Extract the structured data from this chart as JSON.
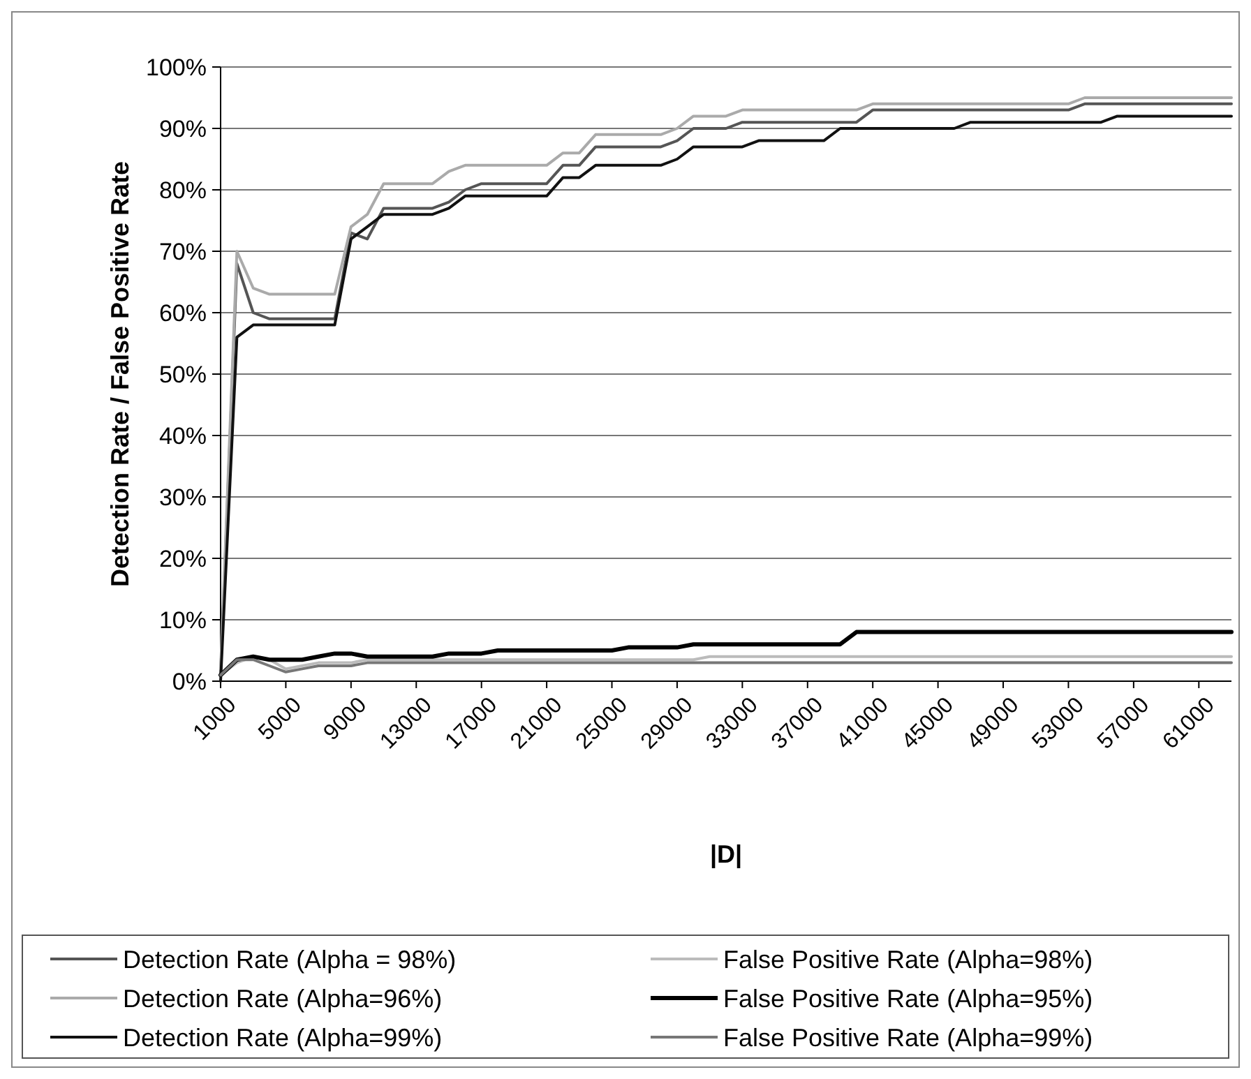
{
  "chart_data": {
    "type": "line",
    "xlabel": "|D|",
    "ylabel": "Detection Rate / False Positive Rate",
    "x": [
      1000,
      2000,
      3000,
      4000,
      5000,
      6000,
      7000,
      8000,
      9000,
      10000,
      11000,
      12000,
      13000,
      14000,
      15000,
      16000,
      17000,
      18000,
      19000,
      20000,
      21000,
      22000,
      23000,
      24000,
      25000,
      26000,
      27000,
      28000,
      29000,
      30000,
      31000,
      32000,
      33000,
      34000,
      35000,
      36000,
      37000,
      38000,
      39000,
      40000,
      41000,
      42000,
      43000,
      44000,
      45000,
      46000,
      47000,
      48000,
      49000,
      50000,
      51000,
      52000,
      53000,
      54000,
      55000,
      56000,
      57000,
      58000,
      59000,
      60000,
      61000,
      62000,
      63000
    ],
    "series": [
      {
        "name": "Detection Rate (Alpha = 98%)",
        "color": "#555555",
        "values": [
          1,
          68,
          60,
          59,
          59,
          59,
          59,
          59,
          73,
          72,
          77,
          77,
          77,
          77,
          78,
          80,
          81,
          81,
          81,
          81,
          81,
          84,
          84,
          87,
          87,
          87,
          87,
          87,
          88,
          90,
          90,
          90,
          91,
          91,
          91,
          91,
          91,
          91,
          91,
          91,
          93,
          93,
          93,
          93,
          93,
          93,
          93,
          93,
          93,
          93,
          93,
          93,
          93,
          94,
          94,
          94,
          94,
          94,
          94,
          94,
          94,
          94,
          94
        ]
      },
      {
        "name": "False Positive Rate (Alpha=98%)",
        "color": "#bbbbbb",
        "values": [
          1,
          3,
          4,
          3.5,
          2,
          2.5,
          3,
          3,
          3,
          3.5,
          3.5,
          3.5,
          3.5,
          3.5,
          3.5,
          3.5,
          3.5,
          3.5,
          3.5,
          3.5,
          3.5,
          3.5,
          3.5,
          3.5,
          3.5,
          3.5,
          3.5,
          3.5,
          3.5,
          3.5,
          4,
          4,
          4,
          4,
          4,
          4,
          4,
          4,
          4,
          4,
          4,
          4,
          4,
          4,
          4,
          4,
          4,
          4,
          4,
          4,
          4,
          4,
          4,
          4,
          4,
          4,
          4,
          4,
          4,
          4,
          4,
          4,
          4
        ]
      },
      {
        "name": "Detection Rate (Alpha=96%)",
        "color": "#aaaaaa",
        "values": [
          2,
          70,
          64,
          63,
          63,
          63,
          63,
          63,
          74,
          76,
          81,
          81,
          81,
          81,
          83,
          84,
          84,
          84,
          84,
          84,
          84,
          86,
          86,
          89,
          89,
          89,
          89,
          89,
          90,
          92,
          92,
          92,
          93,
          93,
          93,
          93,
          93,
          93,
          93,
          93,
          94,
          94,
          94,
          94,
          94,
          94,
          94,
          94,
          94,
          94,
          94,
          94,
          94,
          95,
          95,
          95,
          95,
          95,
          95,
          95,
          95,
          95,
          95
        ]
      },
      {
        "name": "False Positive Rate (Alpha=95%)",
        "color": "#000000",
        "values": [
          1,
          3.5,
          4,
          3.5,
          3.5,
          3.5,
          4,
          4.5,
          4.5,
          4,
          4,
          4,
          4,
          4,
          4.5,
          4.5,
          4.5,
          5,
          5,
          5,
          5,
          5,
          5,
          5,
          5,
          5.5,
          5.5,
          5.5,
          5.5,
          6,
          6,
          6,
          6,
          6,
          6,
          6,
          6,
          6,
          6,
          8,
          8,
          8,
          8,
          8,
          8,
          8,
          8,
          8,
          8,
          8,
          8,
          8,
          8,
          8,
          8,
          8,
          8,
          8,
          8,
          8,
          8,
          8,
          8
        ]
      },
      {
        "name": "Detection Rate (Alpha=99%)",
        "color": "#111111",
        "values": [
          0,
          56,
          58,
          58,
          58,
          58,
          58,
          58,
          72,
          74,
          76,
          76,
          76,
          76,
          77,
          79,
          79,
          79,
          79,
          79,
          79,
          82,
          82,
          84,
          84,
          84,
          84,
          84,
          85,
          87,
          87,
          87,
          87,
          88,
          88,
          88,
          88,
          88,
          90,
          90,
          90,
          90,
          90,
          90,
          90,
          90,
          91,
          91,
          91,
          91,
          91,
          91,
          91,
          91,
          91,
          92,
          92,
          92,
          92,
          92,
          92,
          92,
          92
        ]
      },
      {
        "name": "False Positive Rate (Alpha=99%)",
        "color": "#777777",
        "values": [
          1,
          3.5,
          3.5,
          2.5,
          1.5,
          2,
          2.5,
          2.5,
          2.5,
          3,
          3,
          3,
          3,
          3,
          3,
          3,
          3,
          3,
          3,
          3,
          3,
          3,
          3,
          3,
          3,
          3,
          3,
          3,
          3,
          3,
          3,
          3,
          3,
          3,
          3,
          3,
          3,
          3,
          3,
          3,
          3,
          3,
          3,
          3,
          3,
          3,
          3,
          3,
          3,
          3,
          3,
          3,
          3,
          3,
          3,
          3,
          3,
          3,
          3,
          3,
          3,
          3,
          3
        ]
      }
    ],
    "xlim": [
      1000,
      63000
    ],
    "xticks": [
      1000,
      5000,
      9000,
      13000,
      17000,
      21000,
      25000,
      29000,
      33000,
      37000,
      41000,
      45000,
      49000,
      53000,
      57000,
      61000
    ],
    "ylim": [
      0,
      100
    ],
    "yticks": [
      {
        "value": 0,
        "label": "0%"
      },
      {
        "value": 10,
        "label": "10%"
      },
      {
        "value": 20,
        "label": "20%"
      },
      {
        "value": 30,
        "label": "30%"
      },
      {
        "value": 40,
        "label": "40%"
      },
      {
        "value": 50,
        "label": "50%"
      },
      {
        "value": 60,
        "label": "60%"
      },
      {
        "value": 70,
        "label": "70%"
      },
      {
        "value": 80,
        "label": "80%"
      },
      {
        "value": 90,
        "label": "90%"
      },
      {
        "value": 100,
        "label": "100%"
      }
    ],
    "grid": "y",
    "legend": "bottom",
    "marker": "none",
    "line_style": "solid"
  }
}
